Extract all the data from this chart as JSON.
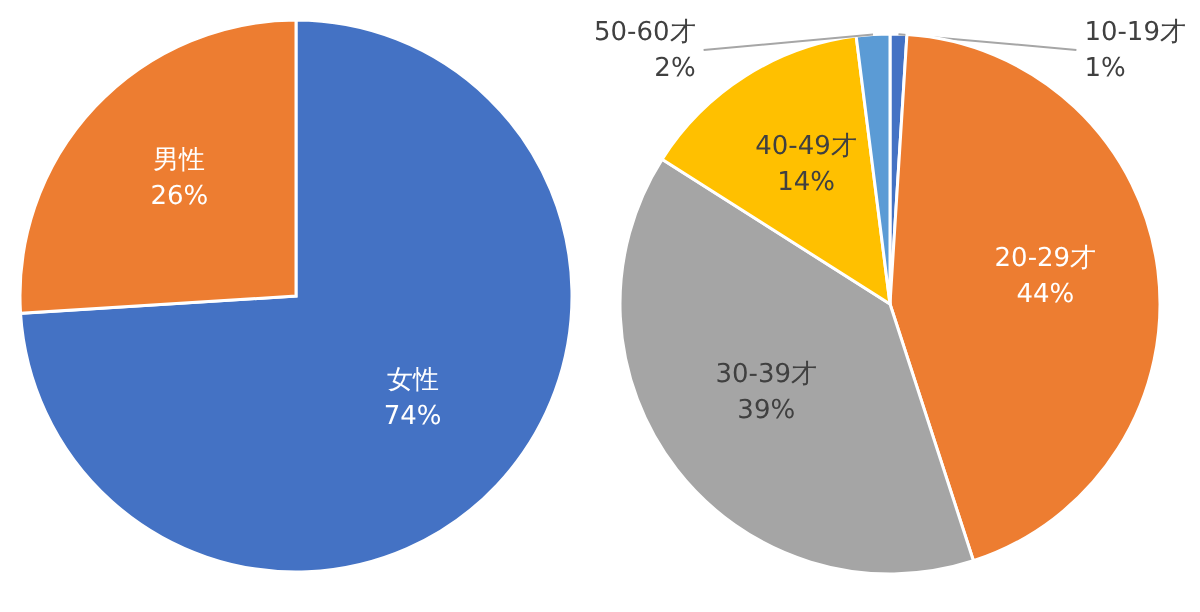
{
  "chart_data": [
    {
      "type": "pie",
      "categories": [
        "女性",
        "男性"
      ],
      "values": [
        74,
        26
      ],
      "colors": [
        "#4472c4",
        "#ed7d31"
      ],
      "value_labels": [
        "74%",
        "26%"
      ]
    },
    {
      "type": "pie",
      "categories": [
        "10-19才",
        "20-29才",
        "30-39才",
        "40-49才",
        "50-60才"
      ],
      "values": [
        1,
        44,
        39,
        14,
        2
      ],
      "colors": [
        "#4472c4",
        "#ed7d31",
        "#a5a5a5",
        "#ffc000",
        "#5b9bd5"
      ],
      "value_labels": [
        "1%",
        "44%",
        "39%",
        "14%",
        "2%"
      ]
    }
  ]
}
